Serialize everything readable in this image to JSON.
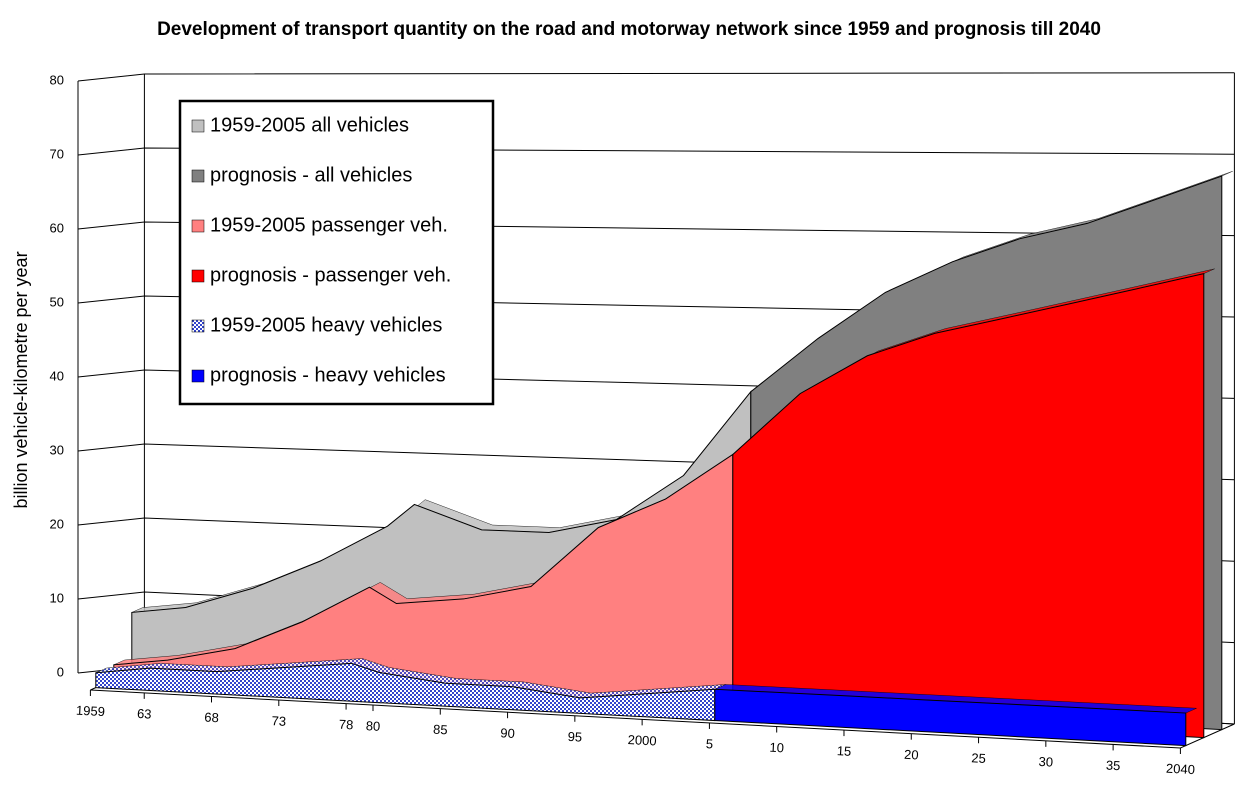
{
  "chart_data": {
    "type": "area3d",
    "title": "Development of transport quantity on the road and motorway network since 1959 and prognosis till 2040",
    "ylabel": "billion vehicle-kilometre per year",
    "ylim": [
      0,
      80
    ],
    "yticks": [
      0,
      10,
      20,
      30,
      40,
      50,
      60,
      70,
      80
    ],
    "xlim": [
      1959,
      2040
    ],
    "xticks": [
      1959,
      {
        "value": 1963,
        "label": "63"
      },
      {
        "value": 1968,
        "label": "68"
      },
      {
        "value": 1973,
        "label": "73"
      },
      {
        "value": 1978,
        "label": "78"
      },
      {
        "value": 1980,
        "label": "80"
      },
      {
        "value": 1985,
        "label": "85"
      },
      {
        "value": 1990,
        "label": "90"
      },
      {
        "value": 1995,
        "label": "95"
      },
      2000,
      {
        "value": 2005,
        "label": "5"
      },
      {
        "value": 2010,
        "label": "10"
      },
      {
        "value": 2015,
        "label": "15"
      },
      {
        "value": 2020,
        "label": "20"
      },
      {
        "value": 2025,
        "label": "25"
      },
      {
        "value": 2030,
        "label": "30"
      },
      {
        "value": 2035,
        "label": "35"
      },
      2040
    ],
    "grid": true,
    "series": [
      {
        "name": "1959-2005 all vehicles",
        "color": "#c0c0c0",
        "depth": 2,
        "x": [
          1959,
          1963,
          1968,
          1973,
          1978,
          1980,
          1985,
          1990,
          1995,
          2000,
          2005
        ],
        "values": [
          8,
          9,
          12,
          16,
          21,
          24,
          21,
          21,
          23,
          29,
          40
        ]
      },
      {
        "name": "prognosis - all vehicles",
        "color": "#808080",
        "depth": 2,
        "x": [
          2005,
          2010,
          2015,
          2020,
          2025,
          2030,
          2035,
          2040
        ],
        "values": [
          40,
          47,
          53,
          57,
          60,
          62,
          65,
          68
        ]
      },
      {
        "name": "1959-2005 passenger veh.",
        "color": "#ff8080",
        "depth": 1,
        "x": [
          1959,
          1963,
          1968,
          1973,
          1978,
          1980,
          1985,
          1990,
          1995,
          2000,
          2005
        ],
        "values": [
          2,
          3,
          5,
          9,
          14,
          12,
          13,
          15,
          23,
          27,
          33
        ]
      },
      {
        "name": "prognosis - passenger veh.",
        "color": "#ff0000",
        "depth": 1,
        "x": [
          2005,
          2010,
          2015,
          2020,
          2025,
          2030,
          2035,
          2040
        ],
        "values": [
          33,
          41,
          46,
          49,
          51,
          53,
          55,
          57
        ]
      },
      {
        "name": "1959-2005 heavy vehicles",
        "color": "#3344cc",
        "pattern": "dotted",
        "depth": 0,
        "x": [
          1959,
          1963,
          1968,
          1973,
          1978,
          1980,
          1985,
          1990,
          1995,
          2000,
          2005
        ],
        "values": [
          2,
          3,
          3,
          4,
          5,
          4,
          3,
          3,
          2,
          3,
          4
        ]
      },
      {
        "name": "prognosis - heavy vehicles",
        "color": "#0000ff",
        "depth": 0,
        "x": [
          2005,
          2010,
          2015,
          2020,
          2025,
          2030,
          2035,
          2040
        ],
        "values": [
          4,
          4,
          4,
          4,
          4,
          4,
          4,
          4
        ]
      }
    ]
  }
}
